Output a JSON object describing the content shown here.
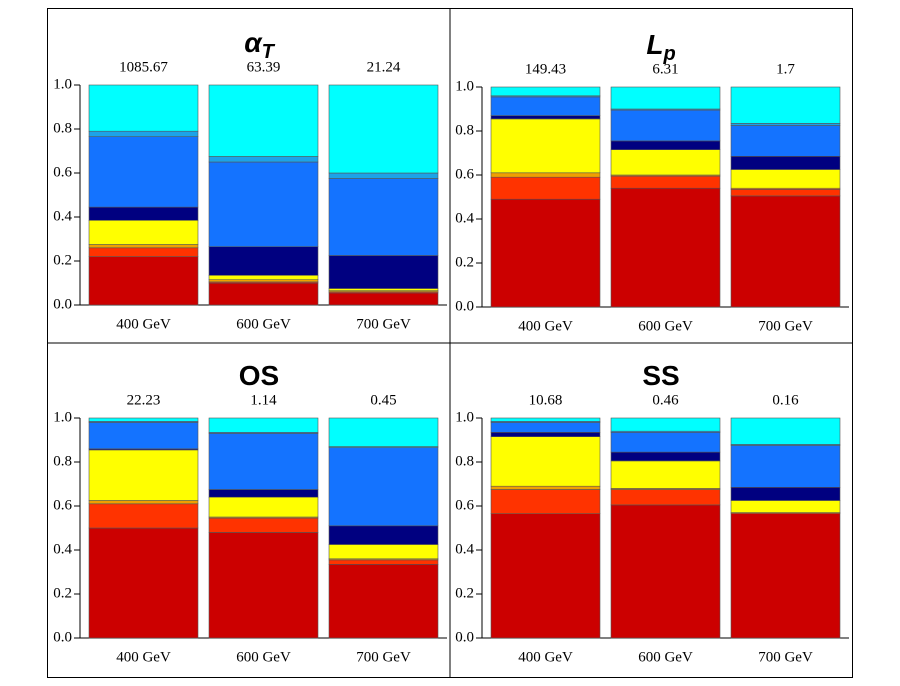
{
  "chart_data": [
    {
      "type": "bar",
      "stacked": true,
      "title": "α",
      "title_subscript": "T",
      "annotations": [
        "1085.67",
        "63.39",
        "21.24"
      ],
      "categories": [
        "400 GeV",
        "600 GeV",
        "700 GeV"
      ],
      "ylim": [
        0,
        1
      ],
      "yticks": [
        {
          "value": 0,
          "label": "0.0"
        },
        {
          "value": 0.2,
          "label": "0.2"
        },
        {
          "value": 0.4,
          "label": "0.4"
        },
        {
          "value": 0.6,
          "label": "0.6"
        },
        {
          "value": 0.8,
          "label": "0.8"
        },
        {
          "value": 1,
          "label": "1.0"
        }
      ],
      "series": [
        {
          "color": "#cc0000",
          "values": [
            0.22,
            0.1,
            0.055
          ]
        },
        {
          "color": "#ff3300",
          "values": [
            0.04,
            0.005,
            0.005
          ]
        },
        {
          "color": "#f0a000",
          "values": [
            0.015,
            0.01,
            0.005
          ]
        },
        {
          "color": "#ffff00",
          "values": [
            0.11,
            0.02,
            0.01
          ]
        },
        {
          "color": "#000080",
          "values": [
            0.06,
            0.13,
            0.15
          ]
        },
        {
          "color": "#1473ff",
          "values": [
            0.32,
            0.385,
            0.35
          ]
        },
        {
          "color": "#1ca3e8",
          "values": [
            0.025,
            0.025,
            0.025
          ]
        },
        {
          "color": "#00ffff",
          "values": [
            0.21,
            0.325,
            0.4
          ]
        }
      ]
    },
    {
      "type": "bar",
      "stacked": true,
      "title": "L",
      "title_subscript": "p",
      "annotations": [
        "149.43",
        "6.31",
        "1.7"
      ],
      "categories": [
        "400 GeV",
        "600 GeV",
        "700 GeV"
      ],
      "ylim": [
        0,
        1
      ],
      "yticks": [
        {
          "value": 0,
          "label": "0.0"
        },
        {
          "value": 0.2,
          "label": "0.2"
        },
        {
          "value": 0.4,
          "label": "0.4"
        },
        {
          "value": 0.6,
          "label": "0.6"
        },
        {
          "value": 0.8,
          "label": "0.8"
        },
        {
          "value": 1,
          "label": "1.0"
        }
      ],
      "series": [
        {
          "color": "#cc0000",
          "values": [
            0.49,
            0.54,
            0.505
          ]
        },
        {
          "color": "#ff3300",
          "values": [
            0.1,
            0.055,
            0.03
          ]
        },
        {
          "color": "#f0a000",
          "values": [
            0.02,
            0.005,
            0.005
          ]
        },
        {
          "color": "#ffff00",
          "values": [
            0.245,
            0.115,
            0.085
          ]
        },
        {
          "color": "#000080",
          "values": [
            0.015,
            0.04,
            0.06
          ]
        },
        {
          "color": "#1473ff",
          "values": [
            0.085,
            0.14,
            0.14
          ]
        },
        {
          "color": "#1ca3e8",
          "values": [
            0.005,
            0.005,
            0.01
          ]
        },
        {
          "color": "#00ffff",
          "values": [
            0.04,
            0.1,
            0.165
          ]
        }
      ]
    },
    {
      "type": "bar",
      "stacked": true,
      "title": "OS",
      "annotations": [
        "22.23",
        "1.14",
        "0.45"
      ],
      "categories": [
        "400 GeV",
        "600 GeV",
        "700 GeV"
      ],
      "ylim": [
        0,
        1
      ],
      "yticks": [
        {
          "value": 0,
          "label": "0.0"
        },
        {
          "value": 0.2,
          "label": "0.2"
        },
        {
          "value": 0.4,
          "label": "0.4"
        },
        {
          "value": 0.6,
          "label": "0.6"
        },
        {
          "value": 0.8,
          "label": "0.8"
        },
        {
          "value": 1,
          "label": "1.0"
        }
      ],
      "series": [
        {
          "color": "#cc0000",
          "values": [
            0.5,
            0.48,
            0.335
          ]
        },
        {
          "color": "#ff3300",
          "values": [
            0.11,
            0.065,
            0.02
          ]
        },
        {
          "color": "#f0a000",
          "values": [
            0.015,
            0.005,
            0.005
          ]
        },
        {
          "color": "#ffff00",
          "values": [
            0.23,
            0.09,
            0.065
          ]
        },
        {
          "color": "#000080",
          "values": [
            0.005,
            0.035,
            0.085
          ]
        },
        {
          "color": "#1473ff",
          "values": [
            0.12,
            0.255,
            0.355
          ]
        },
        {
          "color": "#1ca3e8",
          "values": [
            0.005,
            0.005,
            0.005
          ]
        },
        {
          "color": "#00ffff",
          "values": [
            0.015,
            0.065,
            0.13
          ]
        }
      ]
    },
    {
      "type": "bar",
      "stacked": true,
      "title": "SS",
      "annotations": [
        "10.68",
        "0.46",
        "0.16"
      ],
      "categories": [
        "400 GeV",
        "600 GeV",
        "700 GeV"
      ],
      "ylim": [
        0,
        1
      ],
      "yticks": [
        {
          "value": 0,
          "label": "0.0"
        },
        {
          "value": 0.2,
          "label": "0.2"
        },
        {
          "value": 0.4,
          "label": "0.4"
        },
        {
          "value": 0.6,
          "label": "0.6"
        },
        {
          "value": 0.8,
          "label": "0.8"
        },
        {
          "value": 1,
          "label": "1.0"
        }
      ],
      "series": [
        {
          "color": "#cc0000",
          "values": [
            0.565,
            0.605,
            0.565
          ]
        },
        {
          "color": "#ff3300",
          "values": [
            0.11,
            0.07,
            0.005
          ]
        },
        {
          "color": "#f0a000",
          "values": [
            0.015,
            0.005,
            0
          ]
        },
        {
          "color": "#ffff00",
          "values": [
            0.225,
            0.125,
            0.055
          ]
        },
        {
          "color": "#000080",
          "values": [
            0.02,
            0.04,
            0.06
          ]
        },
        {
          "color": "#1473ff",
          "values": [
            0.045,
            0.09,
            0.19
          ]
        },
        {
          "color": "#1ca3e8",
          "values": [
            0.005,
            0.005,
            0.005
          ]
        },
        {
          "color": "#00ffff",
          "values": [
            0.015,
            0.06,
            0.12
          ]
        }
      ]
    }
  ]
}
